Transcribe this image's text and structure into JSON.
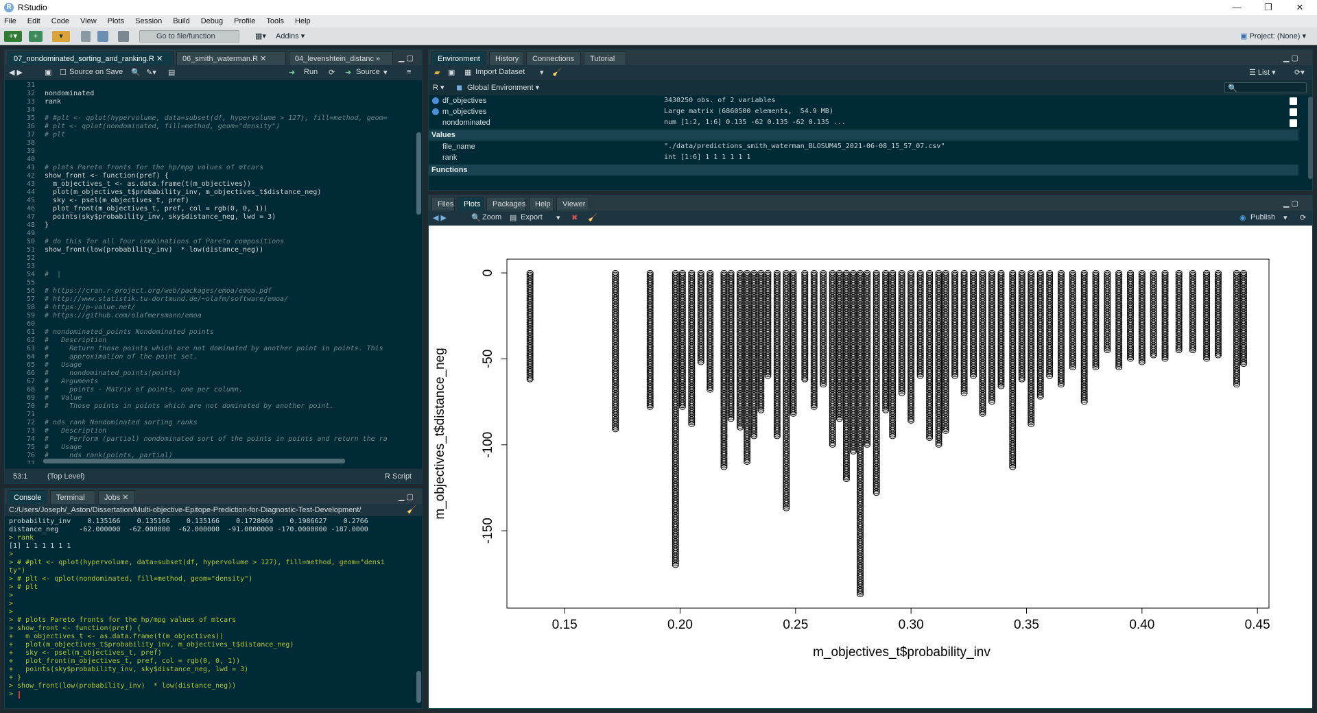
{
  "window": {
    "title": "RStudio"
  },
  "menu": [
    "File",
    "Edit",
    "Code",
    "View",
    "Plots",
    "Session",
    "Build",
    "Debug",
    "Profile",
    "Tools",
    "Help"
  ],
  "toolbar": {
    "go_to_file": "Go to file/function",
    "addins": "Addins",
    "project": "Project: (None)"
  },
  "editor": {
    "tabs": [
      "07_nondominated_sorting_and_ranking.R",
      "06_smith_waterman.R",
      "04_levenshtein_distanc"
    ],
    "source_on_save": "Source on Save",
    "run": "Run",
    "source": "Source",
    "cursor_pos": "53:1",
    "scope": "(Top Level)",
    "file_type": "R Script",
    "lines": [
      {
        "n": "31",
        "t": "",
        "c": false
      },
      {
        "n": "32",
        "t": "nondominated",
        "c": false
      },
      {
        "n": "33",
        "t": "rank",
        "c": false
      },
      {
        "n": "34",
        "t": "",
        "c": false
      },
      {
        "n": "35",
        "t": "# #plt <- qplot(hypervolume, data=subset(df, hypervolume > 127), fill=method, geom=",
        "c": true
      },
      {
        "n": "36",
        "t": "# plt <- qplot(nondominated, fill=method, geom=\"density\")",
        "c": true
      },
      {
        "n": "37",
        "t": "# plt",
        "c": true
      },
      {
        "n": "38",
        "t": "",
        "c": false
      },
      {
        "n": "39",
        "t": "",
        "c": false
      },
      {
        "n": "40",
        "t": "",
        "c": false
      },
      {
        "n": "41",
        "t": "# plots Pareto fronts for the hp/mpg values of mtcars",
        "c": true
      },
      {
        "n": "42",
        "t": "show_front <- function(pref) {",
        "c": false
      },
      {
        "n": "43",
        "t": "  m_objectives_t <- as.data.frame(t(m_objectives))",
        "c": false
      },
      {
        "n": "44",
        "t": "  plot(m_objectives_t$probability_inv, m_objectives_t$distance_neg)",
        "c": false
      },
      {
        "n": "45",
        "t": "  sky <- psel(m_objectives_t, pref)",
        "c": false
      },
      {
        "n": "46",
        "t": "  plot_front(m_objectives_t, pref, col = rgb(0, 0, 1))",
        "c": false
      },
      {
        "n": "47",
        "t": "  points(sky$probability_inv, sky$distance_neg, lwd = 3)",
        "c": false
      },
      {
        "n": "48",
        "t": "}",
        "c": false
      },
      {
        "n": "49",
        "t": "",
        "c": false
      },
      {
        "n": "50",
        "t": "# do this for all four combinations of Pareto compositions",
        "c": true
      },
      {
        "n": "51",
        "t": "show_front(low(probability_inv)  * low(distance_neg))",
        "c": false
      },
      {
        "n": "52",
        "t": "",
        "c": false
      },
      {
        "n": "53",
        "t": "",
        "c": false
      },
      {
        "n": "54",
        "t": "#  |",
        "c": true
      },
      {
        "n": "55",
        "t": "",
        "c": false
      },
      {
        "n": "56",
        "t": "# https://cran.r-project.org/web/packages/emoa/emoa.pdf",
        "c": true
      },
      {
        "n": "57",
        "t": "# http://www.statistik.tu-dortmund.de/~olafm/software/emoa/",
        "c": true
      },
      {
        "n": "58",
        "t": "# https://p-value.net/",
        "c": true
      },
      {
        "n": "59",
        "t": "# https://github.com/olafmersmann/emoa",
        "c": true
      },
      {
        "n": "60",
        "t": "",
        "c": false
      },
      {
        "n": "61",
        "t": "# nondominated_points Nondominated points",
        "c": true
      },
      {
        "n": "62",
        "t": "#   Description",
        "c": true
      },
      {
        "n": "63",
        "t": "#     Return those points which are not dominated by another point in points. This",
        "c": true
      },
      {
        "n": "64",
        "t": "#     approximation of the point set.",
        "c": true
      },
      {
        "n": "65",
        "t": "#   Usage",
        "c": true
      },
      {
        "n": "66",
        "t": "#     nondominated_points(points)",
        "c": true
      },
      {
        "n": "67",
        "t": "#   Arguments",
        "c": true
      },
      {
        "n": "68",
        "t": "#     points - Matrix of points, one per column.",
        "c": true
      },
      {
        "n": "69",
        "t": "#   Value",
        "c": true
      },
      {
        "n": "70",
        "t": "#     Those points in points which are not dominated by another point.",
        "c": true
      },
      {
        "n": "71",
        "t": "",
        "c": false
      },
      {
        "n": "72",
        "t": "# nds_rank Nondominated sorting ranks",
        "c": true
      },
      {
        "n": "73",
        "t": "#   Description",
        "c": true
      },
      {
        "n": "74",
        "t": "#     Perform (partial) nondominated sort of the points in points and return the ra",
        "c": true
      },
      {
        "n": "75",
        "t": "#   Usage",
        "c": true
      },
      {
        "n": "76",
        "t": "#     nds_rank(points, partial)",
        "c": true
      },
      {
        "n": "77",
        "t": "",
        "c": false
      }
    ]
  },
  "console": {
    "tabs": [
      "Console",
      "Terminal",
      "Jobs"
    ],
    "path": "C:/Users/Joseph/_Aston/Dissertation/Multi-objective-Epitope-Prediction-for-Diagnostic-Test-Development/",
    "lines": [
      {
        "t": "probability_inv    0.135166    0.135166    0.135166    0.1728069    0.1986627    0.2766",
        "i": false
      },
      {
        "t": "distance_neg     -62.000000  -62.000000  -62.000000  -91.0000000 -170.0000000 -187.0000",
        "i": false
      },
      {
        "t": "> rank",
        "i": true
      },
      {
        "t": "[1] 1 1 1 1 1 1",
        "i": false
      },
      {
        "t": ">",
        "i": true
      },
      {
        "t": "> # #plt <- qplot(hypervolume, data=subset(df, hypervolume > 127), fill=method, geom=\"densi",
        "i": true
      },
      {
        "t": "ty\")",
        "i": true
      },
      {
        "t": "> # plt <- qplot(nondominated, fill=method, geom=\"density\")",
        "i": true
      },
      {
        "t": "> # plt",
        "i": true
      },
      {
        "t": ">",
        "i": true
      },
      {
        "t": ">",
        "i": true
      },
      {
        "t": ">",
        "i": true
      },
      {
        "t": "> # plots Pareto fronts for the hp/mpg values of mtcars",
        "i": true
      },
      {
        "t": "> show_front <- function(pref) {",
        "i": true
      },
      {
        "t": "+   m_objectives_t <- as.data.frame(t(m_objectives))",
        "i": true
      },
      {
        "t": "+   plot(m_objectives_t$probability_inv, m_objectives_t$distance_neg)",
        "i": true
      },
      {
        "t": "+   sky <- psel(m_objectives_t, pref)",
        "i": true
      },
      {
        "t": "+   plot_front(m_objectives_t, pref, col = rgb(0, 0, 1))",
        "i": true
      },
      {
        "t": "+   points(sky$probability_inv, sky$distance_neg, lwd = 3)",
        "i": true
      },
      {
        "t": "+ }",
        "i": true
      },
      {
        "t": "> show_front(low(probability_inv)  * low(distance_neg))",
        "i": true
      },
      {
        "t": ">",
        "i": true
      }
    ]
  },
  "environment": {
    "tabs": [
      "Environment",
      "History",
      "Connections",
      "Tutorial"
    ],
    "import_dataset": "Import Dataset",
    "list_view": "List",
    "language": "R",
    "scope": "Global Environment",
    "rows": [
      {
        "name": "df_objectives",
        "value": "3430250 obs. of 2 variables"
      },
      {
        "name": "m_objectives",
        "value": "Large matrix (6860500 elements,  54.9 MB)"
      },
      {
        "name": "nondominated",
        "value": "num [1:2, 1:6] 0.135 -62 0.135 -62 0.135 ..."
      }
    ],
    "values_header": "Values",
    "values": [
      {
        "name": "file_name",
        "value": "\"./data/predictions_smith_waterman_BLOSUM45_2021-06-08_15_57_07.csv\""
      },
      {
        "name": "rank",
        "value": "int [1:6] 1 1 1 1 1 1"
      }
    ],
    "functions_header": "Functions"
  },
  "plots": {
    "tabs": [
      "Files",
      "Plots",
      "Packages",
      "Help",
      "Viewer"
    ],
    "zoom": "Zoom",
    "export": "Export",
    "publish": "Publish"
  },
  "chart_data": {
    "type": "scatter",
    "xlabel": "m_objectives_t$probability_inv",
    "ylabel": "m_objectives_t$distance_neg",
    "xlim": [
      0.125,
      0.455
    ],
    "ylim": [
      -195,
      8
    ],
    "xticks": [
      0.15,
      0.2,
      0.25,
      0.3,
      0.35,
      0.4,
      0.45
    ],
    "yticks": [
      0,
      -50,
      -100,
      -150
    ],
    "xtick_labels": [
      "0.15",
      "0.20",
      "0.25",
      "0.30",
      "0.35",
      "0.40",
      "0.45"
    ],
    "ytick_labels": [
      "0",
      "-50",
      "-100",
      "-150"
    ],
    "columns": [
      {
        "x": 0.135,
        "min": -62
      },
      {
        "x": 0.172,
        "min": -91
      },
      {
        "x": 0.187,
        "min": -78
      },
      {
        "x": 0.198,
        "min": -170
      },
      {
        "x": 0.201,
        "min": -78
      },
      {
        "x": 0.205,
        "min": -88
      },
      {
        "x": 0.209,
        "min": -52
      },
      {
        "x": 0.213,
        "min": -68
      },
      {
        "x": 0.219,
        "min": -113
      },
      {
        "x": 0.222,
        "min": -85
      },
      {
        "x": 0.226,
        "min": -90
      },
      {
        "x": 0.229,
        "min": -110
      },
      {
        "x": 0.232,
        "min": -95
      },
      {
        "x": 0.235,
        "min": -80
      },
      {
        "x": 0.238,
        "min": -60
      },
      {
        "x": 0.242,
        "min": -95
      },
      {
        "x": 0.246,
        "min": -137
      },
      {
        "x": 0.249,
        "min": -82
      },
      {
        "x": 0.254,
        "min": -62
      },
      {
        "x": 0.258,
        "min": -78
      },
      {
        "x": 0.262,
        "min": -65
      },
      {
        "x": 0.266,
        "min": -100
      },
      {
        "x": 0.269,
        "min": -85
      },
      {
        "x": 0.272,
        "min": -120
      },
      {
        "x": 0.275,
        "min": -104
      },
      {
        "x": 0.278,
        "min": -187
      },
      {
        "x": 0.281,
        "min": -100
      },
      {
        "x": 0.285,
        "min": -128
      },
      {
        "x": 0.289,
        "min": -80
      },
      {
        "x": 0.292,
        "min": -95
      },
      {
        "x": 0.296,
        "min": -70
      },
      {
        "x": 0.3,
        "min": -86
      },
      {
        "x": 0.304,
        "min": -60
      },
      {
        "x": 0.308,
        "min": -96
      },
      {
        "x": 0.312,
        "min": -100
      },
      {
        "x": 0.315,
        "min": -92
      },
      {
        "x": 0.319,
        "min": -60
      },
      {
        "x": 0.323,
        "min": -70
      },
      {
        "x": 0.327,
        "min": -60
      },
      {
        "x": 0.331,
        "min": -82
      },
      {
        "x": 0.335,
        "min": -75
      },
      {
        "x": 0.339,
        "min": -66
      },
      {
        "x": 0.344,
        "min": -113
      },
      {
        "x": 0.348,
        "min": -62
      },
      {
        "x": 0.352,
        "min": -88
      },
      {
        "x": 0.356,
        "min": -72
      },
      {
        "x": 0.36,
        "min": -60
      },
      {
        "x": 0.365,
        "min": -65
      },
      {
        "x": 0.37,
        "min": -55
      },
      {
        "x": 0.375,
        "min": -75
      },
      {
        "x": 0.38,
        "min": -55
      },
      {
        "x": 0.385,
        "min": -45
      },
      {
        "x": 0.39,
        "min": -55
      },
      {
        "x": 0.395,
        "min": -50
      },
      {
        "x": 0.4,
        "min": -52
      },
      {
        "x": 0.405,
        "min": -48
      },
      {
        "x": 0.41,
        "min": -50
      },
      {
        "x": 0.416,
        "min": -45
      },
      {
        "x": 0.422,
        "min": -45
      },
      {
        "x": 0.428,
        "min": -50
      },
      {
        "x": 0.433,
        "min": -48
      },
      {
        "x": 0.441,
        "min": -65
      },
      {
        "x": 0.444,
        "min": -53
      }
    ]
  },
  "colors": {
    "accent": "#75aadb",
    "editor_bg": "#002b36",
    "console_input": "#b5c733"
  }
}
